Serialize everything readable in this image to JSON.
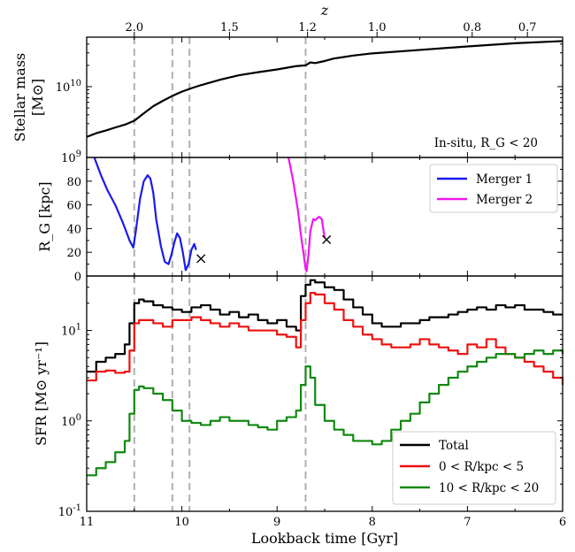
{
  "figure": {
    "top_axis_label": "z",
    "x_axis_label": "Lookback time [Gyr]"
  },
  "chart_data": [
    {
      "type": "line",
      "panel": "stellar-mass",
      "ylabel_main": "Stellar mass",
      "ylabel_unit": "[M⊙]",
      "y_scale": "log",
      "ylim": [
        1000000000,
        50000000000
      ],
      "xlim": [
        11,
        6
      ],
      "x_reversed": true,
      "annotation": "In-situ, R_G < 20",
      "y_tick_labels": [
        "10^9",
        "10^10"
      ],
      "series": [
        {
          "color": "#000000",
          "x": [
            11,
            10.9,
            10.8,
            10.7,
            10.6,
            10.5,
            10.4,
            10.3,
            10.2,
            10.1,
            10.0,
            9.9,
            9.8,
            9.6,
            9.4,
            9.2,
            9.0,
            8.8,
            8.7,
            8.65,
            8.6,
            8.5,
            8.4,
            8.2,
            8.0,
            7.5,
            7.0,
            6.5,
            6.0
          ],
          "y": [
            1950000000,
            2200000000,
            2400000000,
            2650000000,
            2900000000,
            3300000000,
            4200000000,
            5300000000,
            6300000000,
            7400000000,
            8500000000,
            9500000000,
            10500000000,
            12500000000,
            14500000000,
            16000000000,
            17500000000,
            19500000000,
            20000000000,
            22000000000,
            21500000000,
            23000000000,
            25000000000,
            27500000000,
            29500000000,
            33000000000,
            37000000000,
            41000000000,
            44000000000
          ]
        }
      ],
      "vlines": [
        10.5,
        10.1,
        9.92,
        8.7
      ]
    },
    {
      "type": "line",
      "panel": "merger-distance",
      "ylabel": "R_G [kpc]",
      "ylim": [
        0,
        100
      ],
      "xlim": [
        11,
        6
      ],
      "x_reversed": true,
      "y_ticks": [
        0,
        20,
        40,
        60,
        80
      ],
      "legend": "top-right",
      "series": [
        {
          "name": "Merger 1",
          "color": "#1a1aee",
          "x": [
            10.92,
            10.85,
            10.78,
            10.7,
            10.62,
            10.55,
            10.51,
            10.48,
            10.44,
            10.4,
            10.36,
            10.33,
            10.3,
            10.27,
            10.22,
            10.18,
            10.14,
            10.11,
            10.08,
            10.05,
            10.02,
            9.99,
            9.96,
            9.93,
            9.9,
            9.87,
            9.85
          ],
          "y": [
            100,
            85,
            72,
            60,
            45,
            30,
            24,
            40,
            65,
            80,
            85,
            82,
            70,
            48,
            25,
            12,
            10,
            18,
            28,
            36,
            32,
            20,
            5,
            10,
            22,
            27,
            22
          ]
        },
        {
          "name": "Merger 2",
          "color": "#ee18ee",
          "x": [
            8.88,
            8.83,
            8.78,
            8.75,
            8.72,
            8.7,
            8.69,
            8.67,
            8.65,
            8.62,
            8.6,
            8.56,
            8.53,
            8.5
          ],
          "y": [
            100,
            80,
            55,
            35,
            18,
            6,
            4,
            18,
            38,
            48,
            47,
            50,
            48,
            32
          ]
        }
      ],
      "markers": [
        {
          "series": "Merger 1",
          "x": 9.8,
          "y": 15,
          "symbol": "×"
        },
        {
          "series": "Merger 2",
          "x": 8.48,
          "y": 31,
          "symbol": "×"
        }
      ],
      "vlines": [
        10.5,
        10.1,
        9.92,
        8.7
      ]
    },
    {
      "type": "line",
      "panel": "sfr",
      "ylabel": "SFR [M⊙ yr⁻¹]",
      "y_scale": "log",
      "ylim": [
        0.1,
        40
      ],
      "xlim": [
        11,
        6
      ],
      "x_reversed": true,
      "y_tick_labels": [
        "10^-1",
        "10^0",
        "10^1"
      ],
      "x_ticks": [
        11,
        10,
        9,
        8,
        7,
        6
      ],
      "step": true,
      "legend": "bottom-right",
      "series": [
        {
          "name": "Total",
          "color": "#000000",
          "x": [
            11,
            10.9,
            10.8,
            10.7,
            10.6,
            10.55,
            10.5,
            10.45,
            10.4,
            10.3,
            10.2,
            10.1,
            10.0,
            9.9,
            9.8,
            9.7,
            9.6,
            9.5,
            9.4,
            9.3,
            9.2,
            9.1,
            9.0,
            8.9,
            8.8,
            8.75,
            8.7,
            8.65,
            8.6,
            8.5,
            8.4,
            8.3,
            8.2,
            8.1,
            8.0,
            7.9,
            7.8,
            7.7,
            7.6,
            7.5,
            7.4,
            7.3,
            7.2,
            7.1,
            7.0,
            6.9,
            6.8,
            6.7,
            6.6,
            6.5,
            6.4,
            6.3,
            6.2,
            6.1,
            6.0
          ],
          "y": [
            3.5,
            4.5,
            5.0,
            5.5,
            7.0,
            12,
            20,
            22,
            21,
            19,
            18,
            17,
            16,
            18,
            19,
            17,
            15,
            16,
            14,
            15,
            13,
            12,
            13,
            11,
            10,
            24,
            32,
            36,
            34,
            30,
            28,
            22,
            18,
            15,
            12,
            11,
            11,
            12,
            12,
            13,
            14,
            14,
            15,
            16,
            17,
            18,
            17,
            19,
            18,
            19,
            17,
            17,
            16,
            15,
            15
          ]
        },
        {
          "name": "0 < R/kpc < 5",
          "color": "#ee1111",
          "x": [
            11,
            10.9,
            10.8,
            10.7,
            10.6,
            10.55,
            10.5,
            10.45,
            10.4,
            10.3,
            10.2,
            10.1,
            10.0,
            9.9,
            9.8,
            9.7,
            9.6,
            9.5,
            9.4,
            9.3,
            9.2,
            9.1,
            9.0,
            8.9,
            8.8,
            8.75,
            8.7,
            8.65,
            8.6,
            8.5,
            8.4,
            8.3,
            8.2,
            8.1,
            8.0,
            7.9,
            7.8,
            7.7,
            7.6,
            7.5,
            7.4,
            7.3,
            7.2,
            7.1,
            7.0,
            6.9,
            6.8,
            6.7,
            6.6,
            6.5,
            6.4,
            6.3,
            6.2,
            6.1,
            6.0
          ],
          "y": [
            2.8,
            3.5,
            3.6,
            3.4,
            3.5,
            6.0,
            12,
            13,
            13,
            12,
            11,
            13,
            13,
            14,
            13,
            12,
            11,
            12,
            11,
            10,
            10,
            10,
            9.0,
            8.5,
            6.5,
            13,
            20,
            26,
            25,
            20,
            17,
            13,
            11,
            9.0,
            8.0,
            7.0,
            6.5,
            6.5,
            7.0,
            8.0,
            7.0,
            6.5,
            6.0,
            5.5,
            7.0,
            6.5,
            8.0,
            6.5,
            5.5,
            5.0,
            4.5,
            4.0,
            3.5,
            3.0,
            2.5
          ]
        },
        {
          "name": "10 < R/kpc < 20",
          "color": "#118811",
          "x": [
            11,
            10.9,
            10.8,
            10.7,
            10.6,
            10.55,
            10.5,
            10.45,
            10.4,
            10.3,
            10.2,
            10.1,
            10.0,
            9.9,
            9.8,
            9.7,
            9.6,
            9.5,
            9.4,
            9.3,
            9.2,
            9.1,
            9.0,
            8.9,
            8.8,
            8.75,
            8.7,
            8.65,
            8.6,
            8.5,
            8.4,
            8.3,
            8.2,
            8.1,
            8.0,
            7.9,
            7.8,
            7.7,
            7.6,
            7.5,
            7.4,
            7.3,
            7.2,
            7.1,
            7.0,
            6.9,
            6.8,
            6.7,
            6.6,
            6.5,
            6.4,
            6.3,
            6.2,
            6.1,
            6.0
          ],
          "y": [
            0.25,
            0.3,
            0.35,
            0.45,
            0.6,
            1.2,
            2.2,
            2.4,
            2.3,
            2.0,
            1.7,
            1.3,
            1.0,
            0.95,
            0.9,
            1.0,
            1.1,
            1.0,
            1.0,
            0.9,
            0.85,
            0.8,
            1.0,
            1.1,
            1.3,
            2.5,
            4.0,
            3.0,
            1.5,
            1.0,
            0.8,
            0.7,
            0.6,
            0.6,
            0.55,
            0.6,
            0.8,
            1.0,
            1.2,
            1.6,
            2.0,
            2.5,
            3.0,
            3.5,
            4.0,
            4.5,
            5.0,
            5.5,
            5.5,
            5.0,
            5.5,
            6.0,
            5.5,
            6.0,
            5.5
          ]
        }
      ],
      "vlines": [
        10.5,
        10.1,
        9.92,
        8.7
      ]
    }
  ],
  "top_axis": {
    "ticks": [
      {
        "label": "2.0",
        "lookback": 10.5
      },
      {
        "label": "1.5",
        "lookback": 9.5
      },
      {
        "label": "1.2",
        "lookback": 8.68
      },
      {
        "label": "1.0",
        "lookback": 7.95
      },
      {
        "label": "0.8",
        "lookback": 6.95
      },
      {
        "label": "0.7",
        "lookback": 6.37
      }
    ]
  },
  "legend_mergers": [
    {
      "label": "Merger 1",
      "color": "#1a1aee"
    },
    {
      "label": "Merger 2",
      "color": "#ee18ee"
    }
  ],
  "legend_sfr": [
    {
      "label": "Total",
      "color": "#000000"
    },
    {
      "label": "0 < R/kpc < 5",
      "color": "#ee1111"
    },
    {
      "label": "10 < R/kpc < 20",
      "color": "#118811"
    }
  ],
  "vline_color": "#b0b0b0"
}
